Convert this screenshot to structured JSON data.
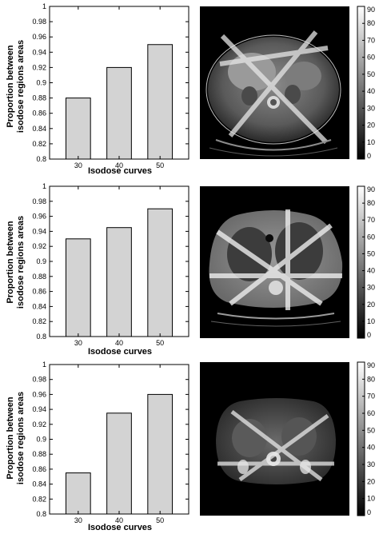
{
  "chart_data": [
    {
      "type": "bar",
      "panel": "A",
      "categories": [
        "30",
        "40",
        "50"
      ],
      "values": [
        0.88,
        0.92,
        0.95
      ],
      "ylabel": "Proportion between isodose regions areas",
      "ylabel_lines": [
        "Proportion between",
        "isodose regions areas"
      ],
      "xlabel": "Isodose curves",
      "ylim": [
        0.8,
        1.0
      ],
      "yticks": [
        "0.8",
        "0.82",
        "0.84",
        "0.86",
        "0.88",
        "0.9",
        "0.92",
        "0.94",
        "0.96",
        "0.98",
        "1"
      ],
      "bar_color": "#d3d3d3",
      "grid": false
    },
    {
      "type": "bar",
      "panel": "B",
      "categories": [
        "30",
        "40",
        "50"
      ],
      "values": [
        0.93,
        0.945,
        0.97
      ],
      "ylabel": "Proportion between isodose regions areas",
      "ylabel_lines": [
        "Proportion between",
        "isodose regions areas"
      ],
      "xlabel": "Isodose curves",
      "ylim": [
        0.8,
        1.0
      ],
      "yticks": [
        "0.8",
        "0.82",
        "0.84",
        "0.86",
        "0.88",
        "0.9",
        "0.92",
        "0.94",
        "0.96",
        "0.98",
        "1"
      ],
      "bar_color": "#d3d3d3",
      "grid": false
    },
    {
      "type": "bar",
      "panel": "C",
      "categories": [
        "30",
        "40",
        "50"
      ],
      "values": [
        0.855,
        0.935,
        0.96
      ],
      "ylabel": "Proportion between isodose regions areas",
      "ylabel_lines": [
        "Proportion between",
        "isodose regions areas"
      ],
      "xlabel": "Isodose curves",
      "ylim": [
        0.8,
        1.0
      ],
      "yticks": [
        "0.8",
        "0.82",
        "0.84",
        "0.86",
        "0.88",
        "0.9",
        "0.92",
        "0.94",
        "0.96",
        "0.98",
        "1"
      ],
      "bar_color": "#d3d3d3",
      "grid": false
    }
  ],
  "colorbar": {
    "ticks": [
      "0",
      "10",
      "20",
      "30",
      "40",
      "50",
      "60",
      "70",
      "80",
      "90"
    ],
    "range": [
      0,
      90
    ],
    "colormap": "grayscale"
  },
  "ct_images": [
    {
      "panel": "A",
      "content": "abdominal CT slice with isodose overlay"
    },
    {
      "panel": "B",
      "content": "thoracic CT slice with isodose overlay"
    },
    {
      "panel": "C",
      "content": "pelvic CT slice with isodose overlay"
    }
  ]
}
